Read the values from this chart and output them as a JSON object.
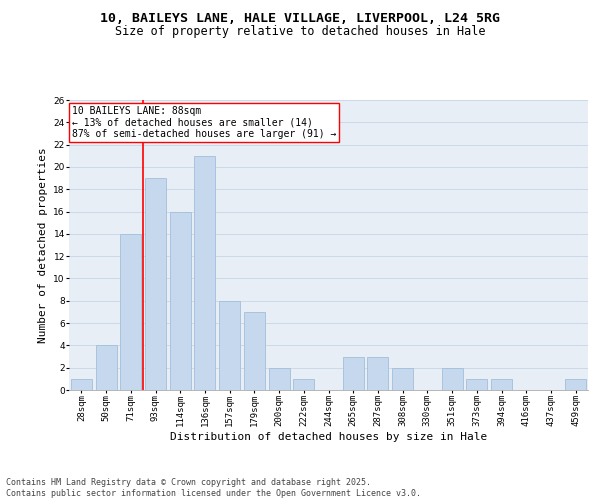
{
  "title1": "10, BAILEYS LANE, HALE VILLAGE, LIVERPOOL, L24 5RG",
  "title2": "Size of property relative to detached houses in Hale",
  "xlabel": "Distribution of detached houses by size in Hale",
  "ylabel": "Number of detached properties",
  "categories": [
    "28sqm",
    "50sqm",
    "71sqm",
    "93sqm",
    "114sqm",
    "136sqm",
    "157sqm",
    "179sqm",
    "200sqm",
    "222sqm",
    "244sqm",
    "265sqm",
    "287sqm",
    "308sqm",
    "330sqm",
    "351sqm",
    "373sqm",
    "394sqm",
    "416sqm",
    "437sqm",
    "459sqm"
  ],
  "values": [
    1,
    4,
    14,
    19,
    16,
    21,
    8,
    7,
    2,
    1,
    0,
    3,
    3,
    2,
    0,
    2,
    1,
    1,
    0,
    0,
    1
  ],
  "bar_color": "#c5d8ed",
  "bar_edge_color": "#a8c4dc",
  "vline_x": 2.5,
  "vline_color": "red",
  "annotation_box_text": "10 BAILEYS LANE: 88sqm\n← 13% of detached houses are smaller (14)\n87% of semi-detached houses are larger (91) →",
  "ylim": [
    0,
    26
  ],
  "yticks": [
    0,
    2,
    4,
    6,
    8,
    10,
    12,
    14,
    16,
    18,
    20,
    22,
    24,
    26
  ],
  "grid_color": "#cdd8e8",
  "bg_color": "#e8eef5",
  "footer": "Contains HM Land Registry data © Crown copyright and database right 2025.\nContains public sector information licensed under the Open Government Licence v3.0.",
  "title_fontsize": 9.5,
  "subtitle_fontsize": 8.5,
  "ylabel_fontsize": 8,
  "xlabel_fontsize": 8,
  "tick_fontsize": 6.5,
  "ann_fontsize": 7,
  "footer_fontsize": 6
}
